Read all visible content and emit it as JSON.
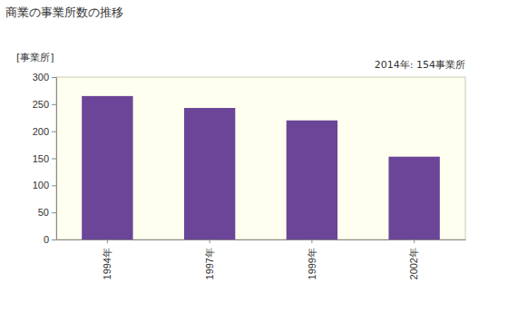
{
  "chart_data": {
    "type": "bar",
    "title": "商業の事業所数の推移",
    "y_label": "[事業所]",
    "annotations": [
      "2014年: 154事業所"
    ],
    "categories": [
      "1994年",
      "1997年",
      "1999年",
      "2002年"
    ],
    "values": [
      265,
      243,
      220,
      153
    ],
    "color": "#6b4597",
    "ylim": [
      0,
      300
    ],
    "yticks": [
      0,
      50,
      100,
      150,
      200,
      250,
      300
    ],
    "grid": false
  }
}
